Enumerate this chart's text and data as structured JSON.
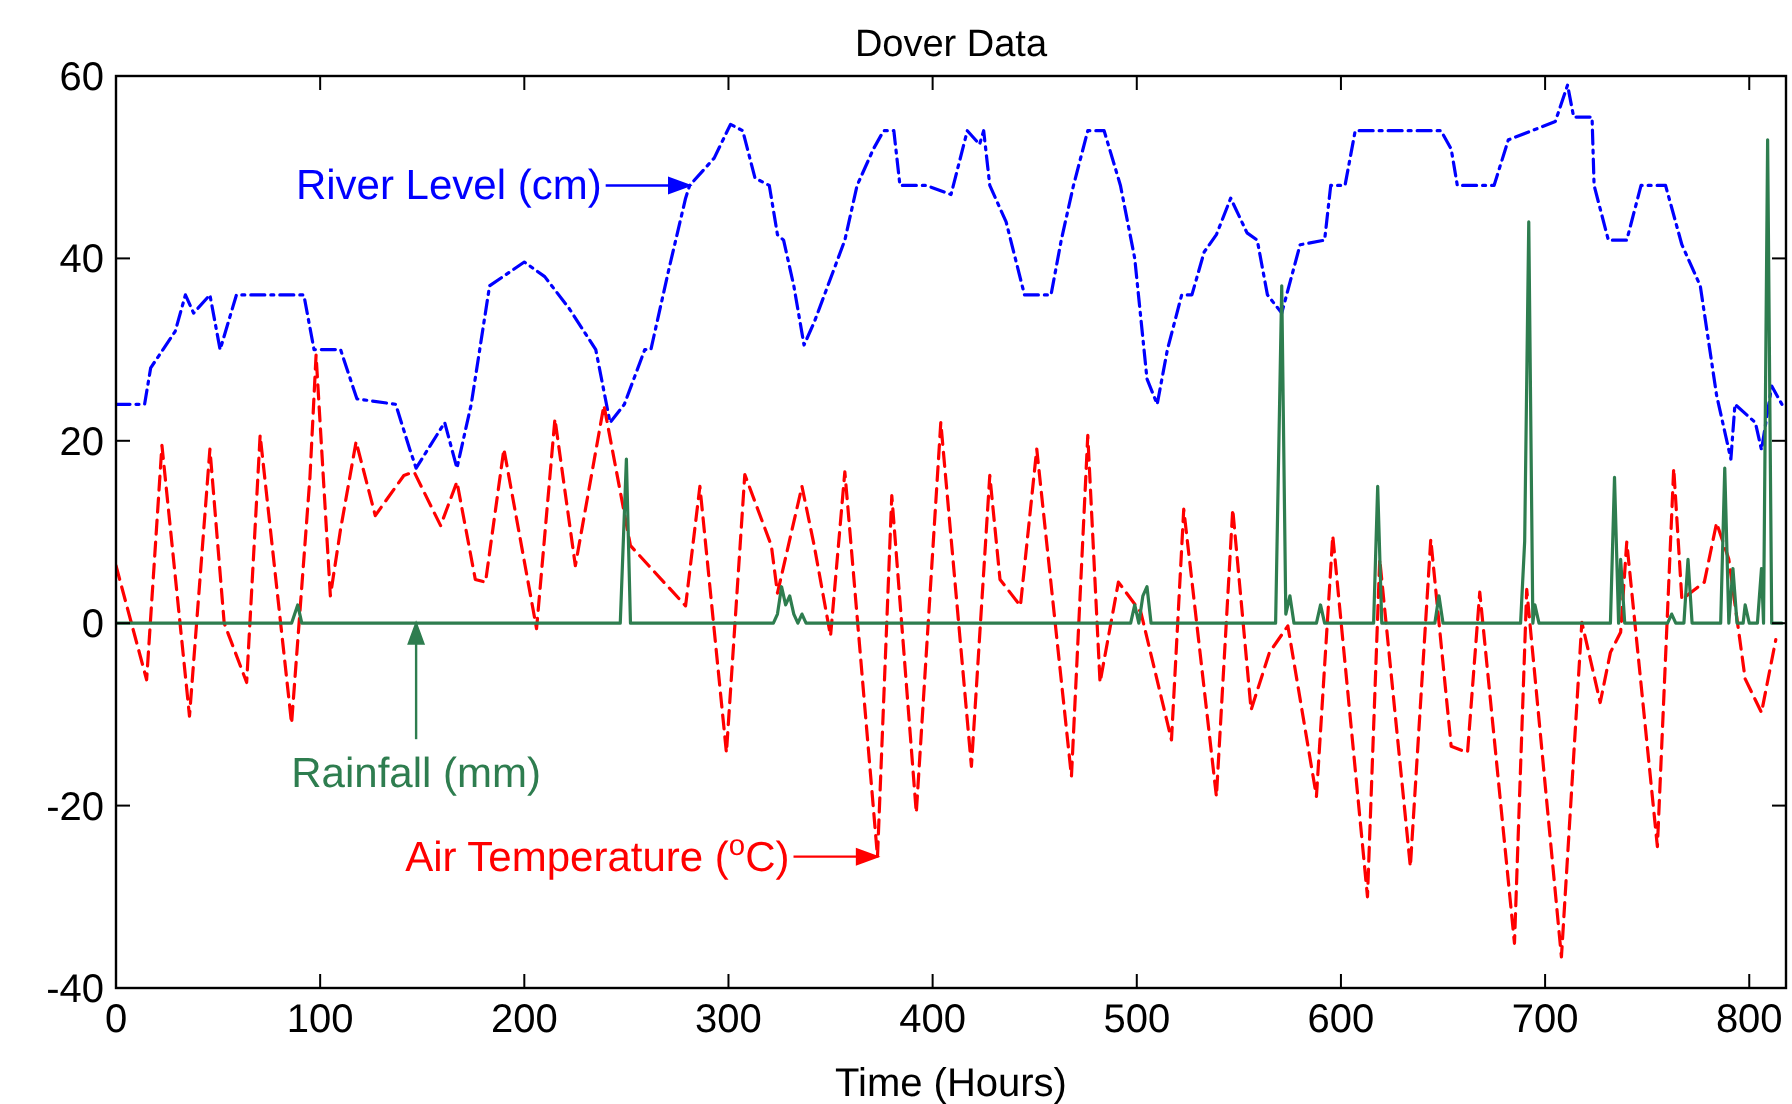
{
  "chart_data": {
    "type": "line",
    "title": "Dover Data",
    "xlabel": "Time (Hours)",
    "xlim": [
      0,
      818
    ],
    "xticks": [
      0,
      100,
      200,
      300,
      400,
      500,
      600,
      700,
      800
    ],
    "ylim": [
      -40,
      60
    ],
    "yticks": [
      -40,
      -20,
      0,
      20,
      40,
      60
    ],
    "grid": false,
    "marker": "none",
    "series": [
      {
        "color": "#0000ff",
        "line_style": "dashdot",
        "x": [
          0,
          14,
          17,
          29,
          34,
          38,
          46,
          51,
          59,
          92,
          97,
          110,
          118,
          137,
          144,
          147,
          161,
          167,
          174,
          183,
          200,
          210,
          222,
          235,
          242,
          249,
          259,
          262,
          271,
          279,
          281,
          293,
          301,
          307,
          313,
          320,
          324,
          327,
          332,
          337,
          342,
          347,
          357,
          363,
          371,
          376,
          381,
          384,
          397,
          409,
          417,
          423,
          425,
          428,
          436,
          445,
          458,
          463,
          469,
          476,
          484,
          492,
          499,
          505,
          510,
          515,
          522,
          527,
          533,
          539,
          546,
          554,
          559,
          564,
          571,
          580,
          592,
          595,
          602,
          607,
          649,
          654,
          657,
          675,
          682,
          705,
          711,
          714,
          723,
          724,
          731,
          740,
          747,
          759,
          767,
          776,
          784,
          791,
          793,
          803,
          806,
          811,
          816
        ],
        "values": [
          24,
          24,
          28,
          32,
          36,
          34,
          36,
          30,
          36,
          36,
          30,
          30,
          24.6,
          24,
          19,
          17,
          22,
          17,
          24,
          37,
          39.6,
          38,
          34.5,
          30,
          22,
          24,
          30,
          30,
          39,
          46.6,
          48,
          51,
          54.7,
          54,
          48.8,
          48,
          42.6,
          42,
          37,
          30.5,
          33,
          36,
          42,
          48,
          52,
          54,
          54,
          48,
          48,
          47,
          54,
          52.5,
          54,
          48,
          44,
          36,
          36,
          42,
          48,
          54,
          54,
          48,
          40,
          26.8,
          24,
          30,
          36,
          36,
          40.7,
          42.6,
          46.6,
          42.8,
          42,
          36,
          34,
          41.5,
          42,
          48,
          48,
          54,
          54,
          52,
          48,
          48,
          53,
          55,
          59,
          55.5,
          55.5,
          48,
          42,
          42,
          48,
          48,
          41.5,
          37,
          25,
          18,
          24,
          22,
          19,
          26,
          24
        ]
      },
      {
        "color": "#ff0000",
        "line_style": "dashed",
        "x": [
          0,
          15,
          22.5,
          36,
          46,
          53,
          64,
          70.6,
          86,
          95,
          98,
          105,
          110,
          117.6,
          127,
          141,
          146,
          159,
          167,
          176,
          181,
          190,
          206,
          215,
          225,
          239,
          252,
          261,
          279,
          286,
          299,
          308,
          321,
          324,
          336,
          342,
          350,
          357,
          373,
          380,
          392,
          404,
          419,
          428,
          433,
          443,
          451,
          468,
          476,
          482,
          491,
          502,
          517,
          523,
          539,
          547,
          556,
          565,
          574,
          588,
          596,
          613,
          619,
          634,
          644,
          654,
          662,
          668,
          685,
          691,
          708,
          718,
          727,
          732,
          737,
          740,
          755,
          763,
          767,
          778,
          784,
          790,
          798,
          806,
          813
        ],
        "values": [
          6.3,
          -6.2,
          19.5,
          -10.2,
          19.1,
          0,
          -6.5,
          20.6,
          -11,
          16,
          29.4,
          3,
          10.3,
          19.9,
          11.8,
          16.2,
          16.6,
          10.7,
          15.5,
          4.8,
          4.5,
          19.1,
          -0.6,
          22.4,
          6.3,
          23.9,
          8.5,
          6.3,
          1.9,
          15,
          -14.2,
          16.3,
          8.5,
          3.3,
          15,
          8.5,
          -1.4,
          16.6,
          -25.6,
          14,
          -20.8,
          22,
          -15.7,
          16.2,
          4.8,
          1.9,
          19.1,
          -16.8,
          20.6,
          -6.5,
          4.5,
          1.2,
          -12.8,
          12.5,
          -19,
          12.5,
          -9.5,
          -3.2,
          -0.3,
          -19,
          9.6,
          -30,
          7,
          -26.7,
          9.2,
          -13.5,
          -14.2,
          3.4,
          -35.1,
          3.7,
          -36.6,
          0.1,
          -8.7,
          -3.2,
          -1,
          8.9,
          -24.5,
          17,
          2.6,
          4.5,
          11,
          7,
          -6.1,
          -9.8,
          -1.8
        ]
      },
      {
        "color": "#2e7d4f",
        "line_style": "solid",
        "x": [
          0,
          86,
          89,
          91,
          247,
          250,
          252,
          322,
          324,
          326,
          328,
          330,
          332,
          334,
          336,
          338,
          497,
          499,
          501,
          503,
          505,
          507,
          568,
          571,
          573,
          575,
          577,
          588,
          590,
          592,
          616,
          618,
          620,
          646,
          648,
          650,
          688,
          690,
          692,
          694,
          695,
          697,
          732,
          734,
          736,
          737,
          739,
          760,
          762,
          764,
          768,
          770,
          772,
          786,
          788,
          790,
          792,
          794,
          797,
          798,
          800,
          804,
          806,
          807,
          809,
          811,
          816
        ],
        "values": [
          0,
          0,
          2,
          0,
          0,
          18,
          0,
          0,
          1,
          4,
          2,
          3,
          1,
          0,
          1,
          0,
          0,
          2,
          0,
          3,
          4,
          0,
          0,
          37,
          1,
          3,
          0,
          0,
          2,
          0,
          0,
          15,
          0,
          0,
          3,
          0,
          0,
          9,
          44,
          0,
          2,
          0,
          0,
          16,
          0,
          7,
          0,
          0,
          1,
          0,
          0,
          7,
          0,
          0,
          17,
          0,
          6,
          0,
          0,
          2,
          0,
          0,
          6,
          0,
          53,
          0,
          0
        ]
      }
    ],
    "annotations": [
      {
        "text": "River Level (cm)",
        "x": 281,
        "y": 48
      },
      {
        "text": "Air Temperature ($^{o}$C)",
        "x": 373,
        "y": -25.6
      },
      {
        "text": "Rainfall (mm)",
        "x": 147,
        "y": 0
      }
    ]
  }
}
